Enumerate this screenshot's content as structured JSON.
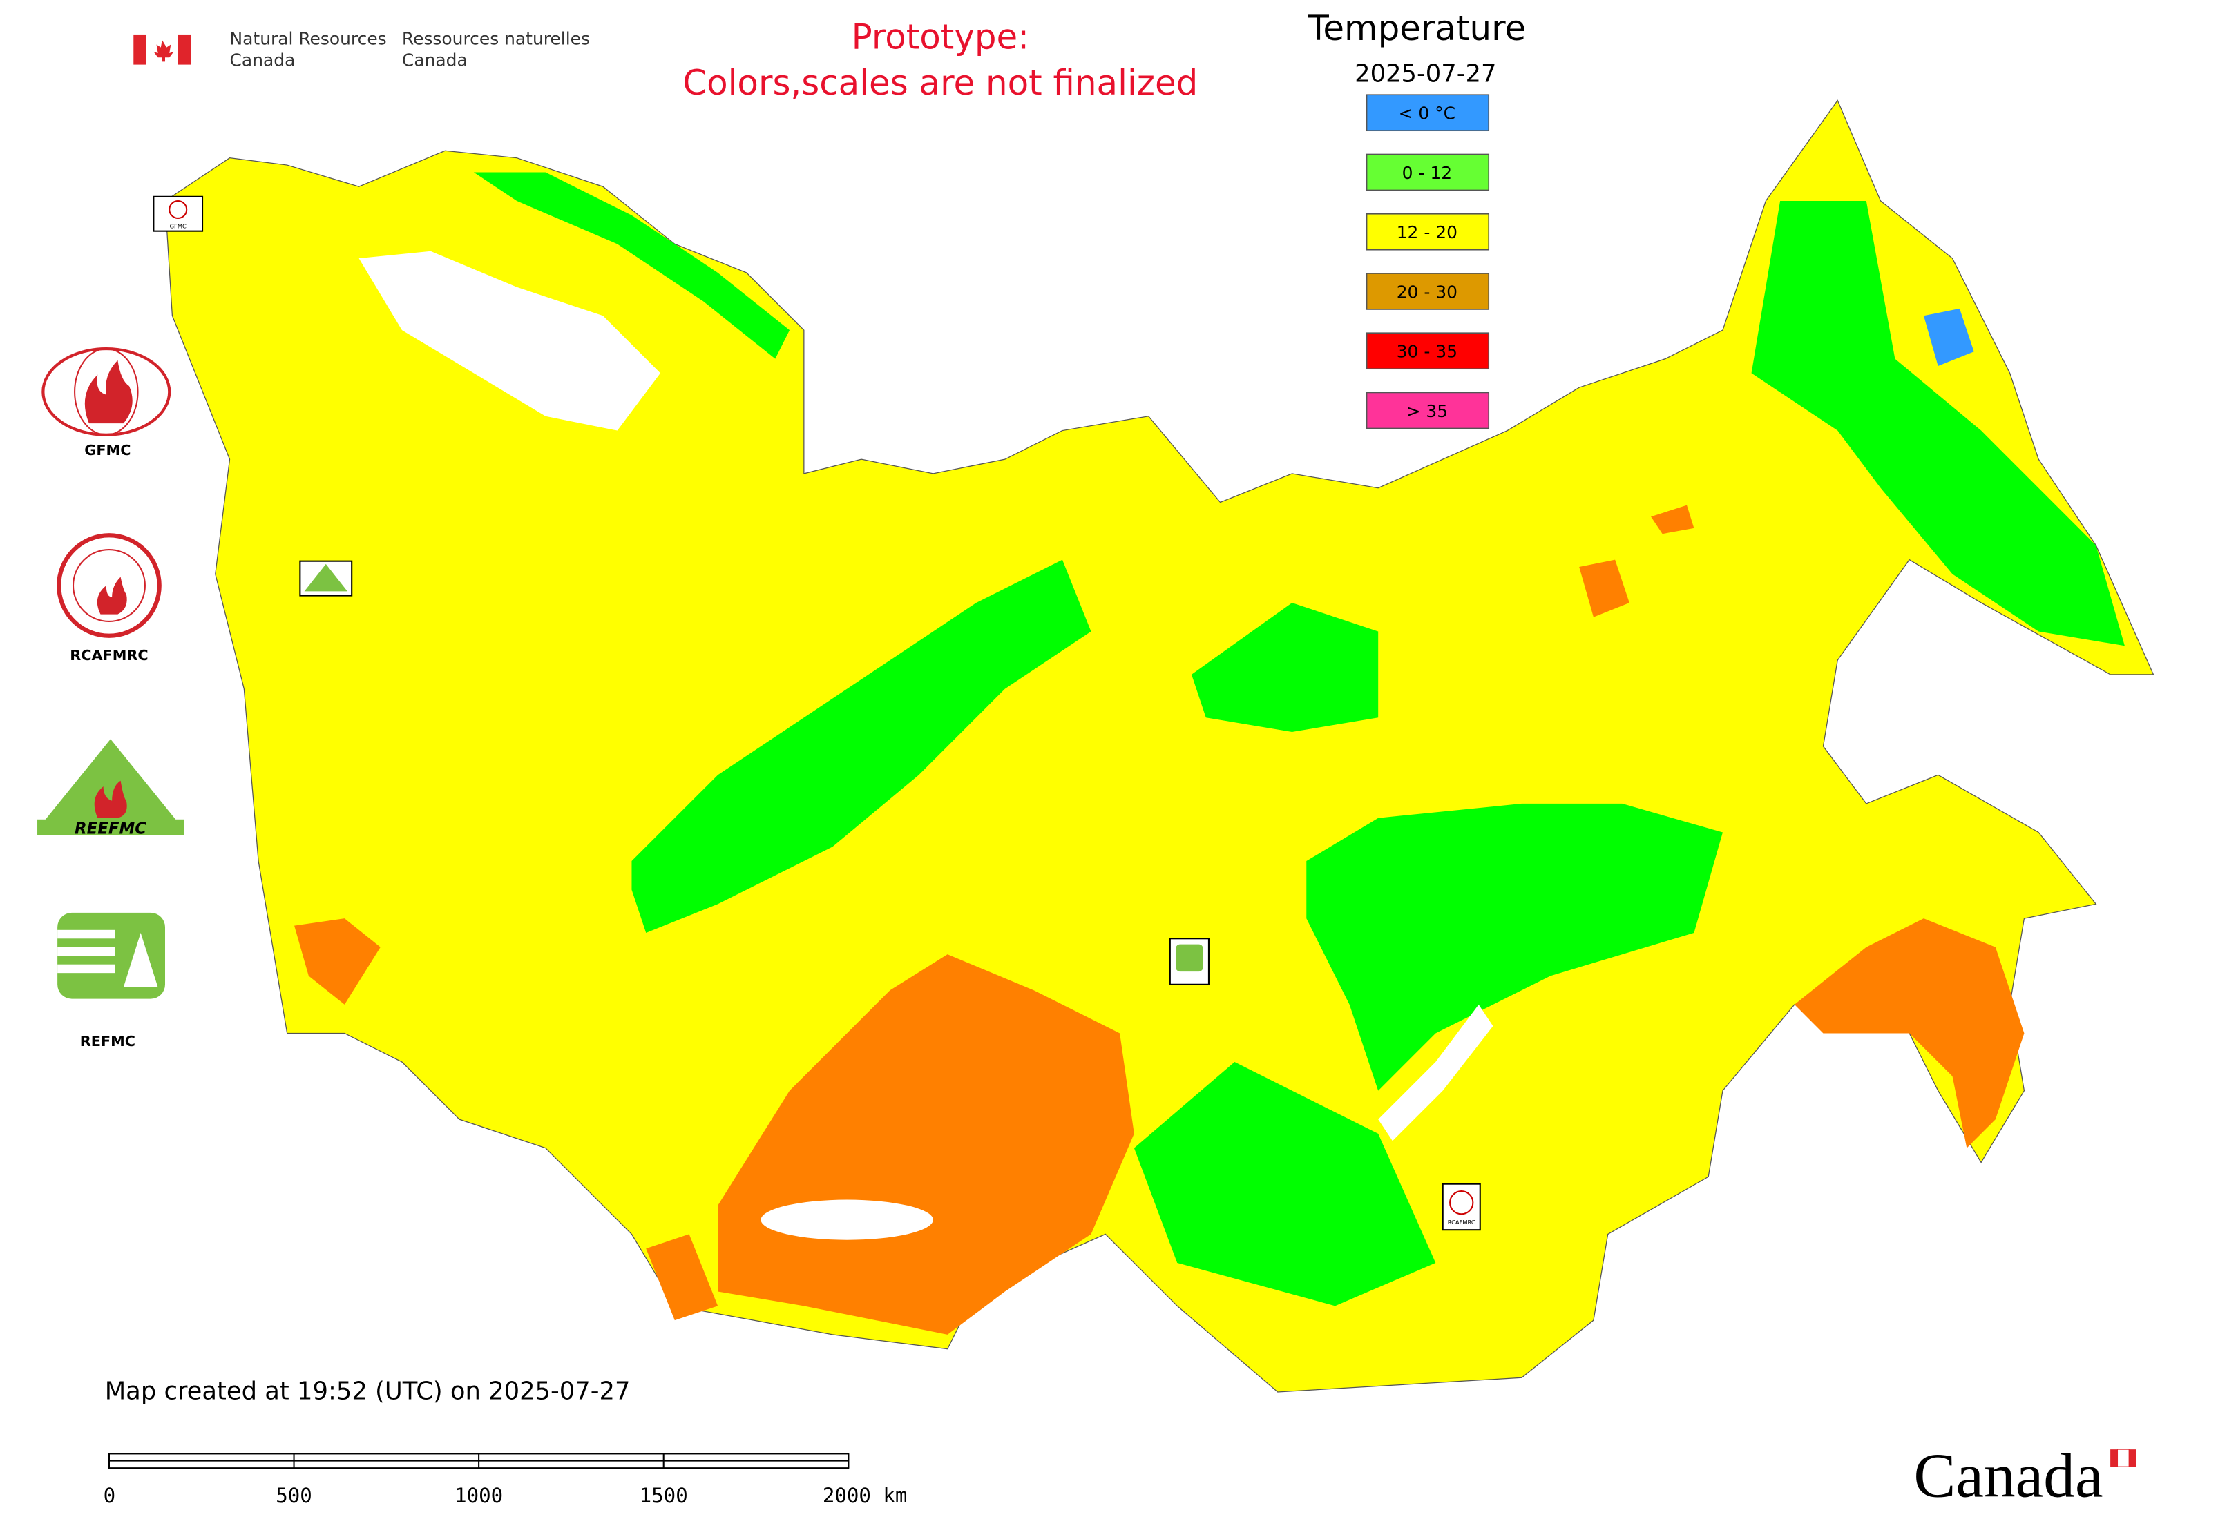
{
  "header": {
    "agency_en": [
      "Natural Resources",
      "Canada"
    ],
    "agency_fr": [
      "Ressources naturelles",
      "Canada"
    ],
    "notice": [
      "Prototype:",
      "Colors,scales are not finalized"
    ]
  },
  "legend": {
    "title": "Temperature",
    "date": "2025-07-27",
    "items": [
      {
        "label": "< 0 °C",
        "color": "#3399ff"
      },
      {
        "label": "0 - 12",
        "color": "#66ff33"
      },
      {
        "label": "12 - 20",
        "color": "#ffff00"
      },
      {
        "label": "20 - 30",
        "color": "#dd9900"
      },
      {
        "label": "30 - 35",
        "color": "#ff0000"
      },
      {
        "label": "> 35",
        "color": "#ff3399"
      }
    ]
  },
  "logos": [
    "GFMC",
    "RCAFMRC",
    "REFMC"
  ],
  "map_markers": [
    "GFMC",
    "RCAFMRC"
  ],
  "footer": {
    "created": "Map created at 19:52 (UTC) on 2025-07-27",
    "scale_labels": [
      "0",
      "500",
      "1000",
      "1500",
      "2000 km"
    ],
    "wordmark": "Canada"
  }
}
